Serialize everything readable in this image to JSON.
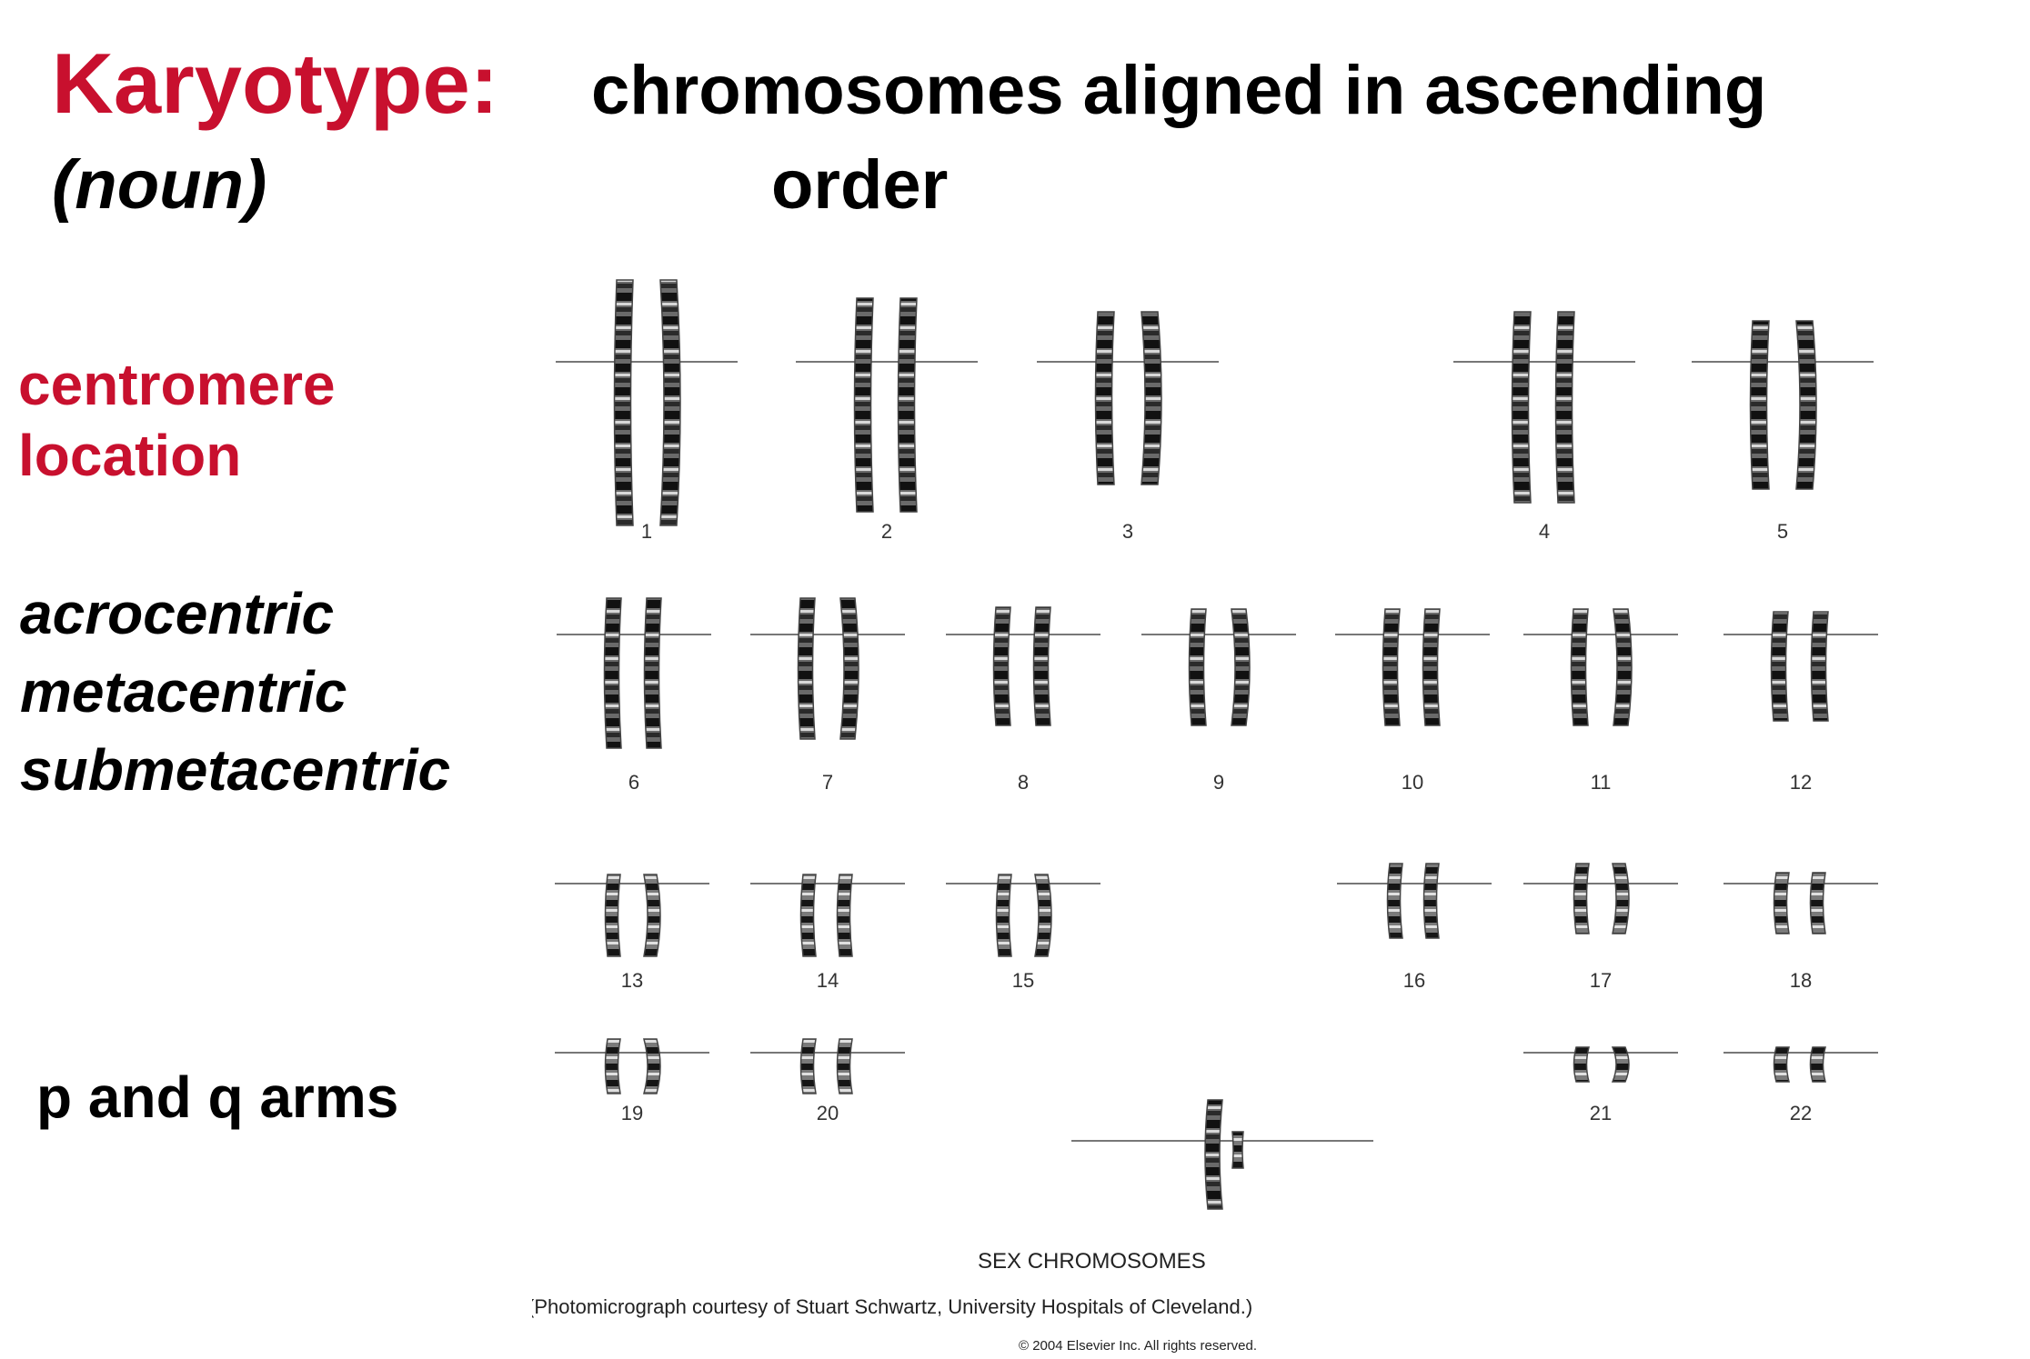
{
  "title": {
    "keyword": "Karyotype:",
    "part_of_speech": "(noun)",
    "definition_line1": "chromosomes aligned in ascending",
    "definition_line2": "order"
  },
  "sidebar": {
    "centromere_line1": "centromere",
    "centromere_line2": "location",
    "types": [
      "acrocentric",
      "metacentric",
      "submetacentric"
    ],
    "arms": "p and q arms"
  },
  "karyogram": {
    "numbers": [
      "1",
      "2",
      "3",
      "4",
      "5",
      "6",
      "7",
      "8",
      "9",
      "10",
      "11",
      "12",
      "13",
      "14",
      "15",
      "16",
      "17",
      "18",
      "19",
      "20",
      "21",
      "22"
    ],
    "sex_label": "SEX CHROMOSOMES",
    "credit": "(Photomicrograph courtesy of Stuart Schwartz, University Hospitals of Cleveland.)",
    "copyright": "© 2004 Elsevier Inc. All rights reserved."
  },
  "colors": {
    "accent_red": "#c8102e",
    "text": "#000000"
  }
}
